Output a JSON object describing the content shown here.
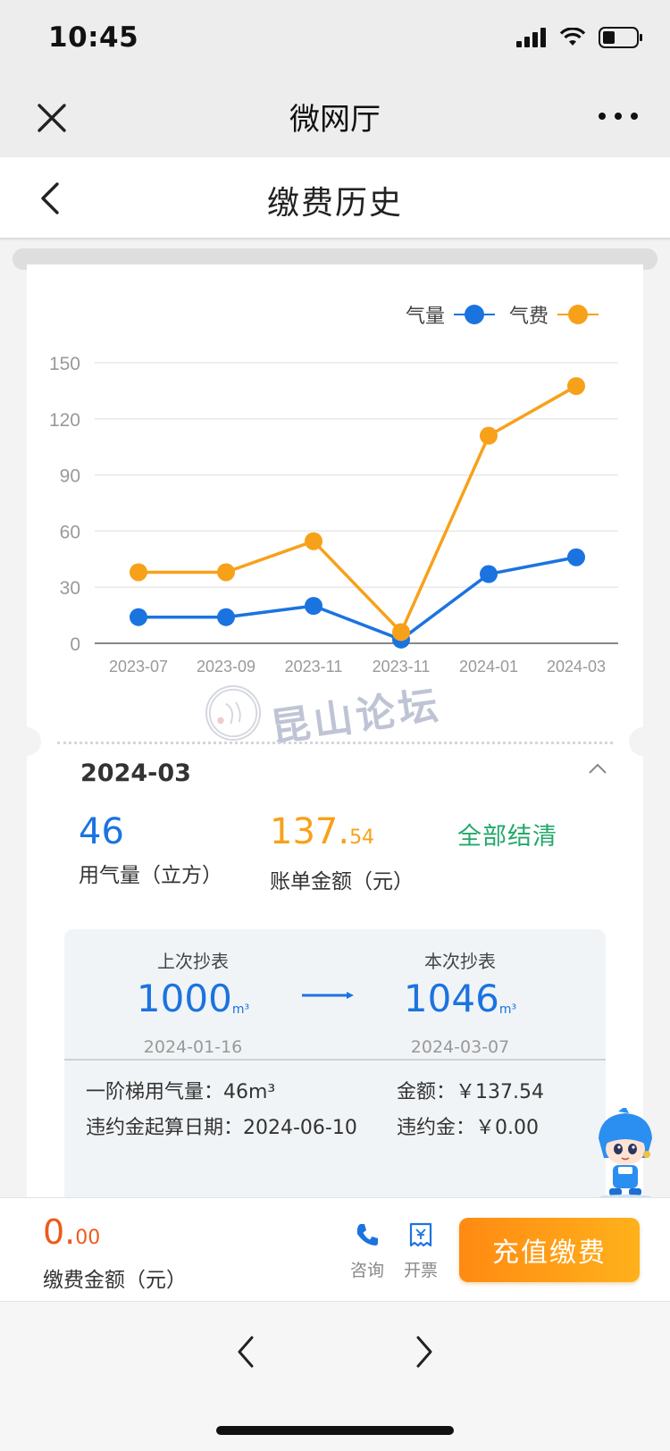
{
  "status_bar": {
    "time": "10:45"
  },
  "wechat_bar": {
    "title": "微网厅"
  },
  "header": {
    "title": "缴费历史"
  },
  "chart_data": {
    "type": "line",
    "categories": [
      "2023-07",
      "2023-09",
      "2023-11",
      "2023-11",
      "2024-01",
      "2024-03"
    ],
    "series": [
      {
        "name": "气量",
        "values": [
          14,
          14,
          20,
          2,
          37,
          46
        ],
        "color": "#1b73e0"
      },
      {
        "name": "气费",
        "values": [
          38,
          38,
          54.6,
          6,
          111,
          137.54
        ],
        "color": "#f7a11a"
      }
    ],
    "yticks": [
      "0",
      "30",
      "60",
      "90",
      "120",
      "150"
    ],
    "ylim": [
      0,
      150
    ],
    "grid": true,
    "legend_position": "top-right"
  },
  "watermark": {
    "text": "昆山论坛"
  },
  "detail": {
    "period": "2024-03",
    "gas_usage": "46",
    "gas_usage_label": "用气量（立方）",
    "bill_int": "137.",
    "bill_dec": "54",
    "bill_label": "账单金额（元）",
    "status": "全部结清",
    "prev_label": "上次抄表",
    "prev_value": "1000",
    "prev_unit": "m³",
    "prev_date": "2024-01-16",
    "curr_label": "本次抄表",
    "curr_value": "1046",
    "curr_unit": "m³",
    "curr_date": "2024-03-07",
    "tier_usage": "一阶梯用气量：46m³",
    "amount": "金额：￥137.54",
    "penalty_date": "违约金起算日期：2024-06-10",
    "penalty": "违约金：￥0.00"
  },
  "bottom": {
    "pay_int": "0.",
    "pay_dec": "00",
    "pay_label": "缴费金额（元）",
    "consult_label": "咨询",
    "invoice_label": "开票",
    "recharge_label": "充值缴费"
  },
  "colors": {
    "blue": "#1b73e0",
    "orange": "#f7a11a",
    "green": "#25a86a",
    "pay_red": "#ee5a1a"
  }
}
